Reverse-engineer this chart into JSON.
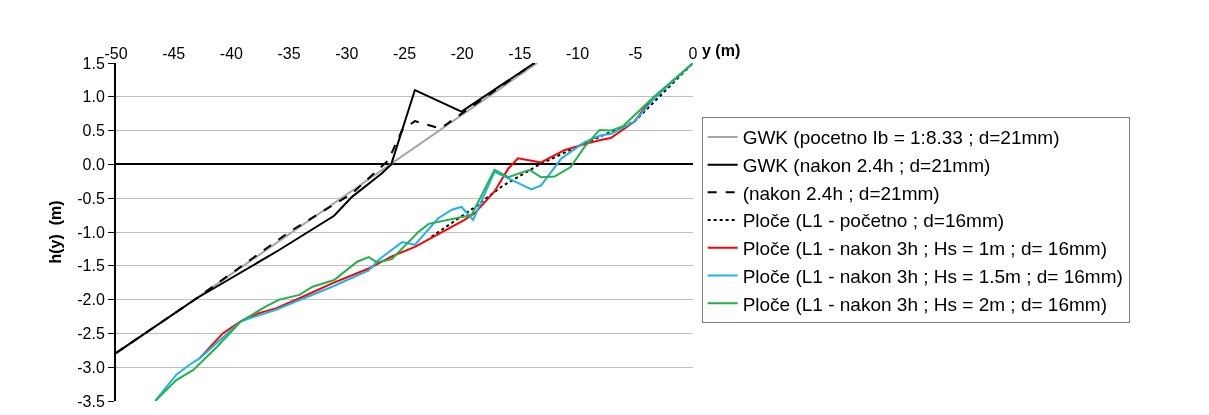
{
  "chart_data": {
    "type": "line",
    "xlabel": "y (m)",
    "ylabel": "h(y)  (m)",
    "xlim": [
      -50,
      0
    ],
    "xticks": [
      -50,
      -45,
      -40,
      -35,
      -30,
      -25,
      -20,
      -15,
      -10,
      -5,
      0
    ],
    "ylim": [
      -3.5,
      1.5
    ],
    "yticks": [
      {
        "value": -3.5,
        "label": "-3.5"
      },
      {
        "value": -3,
        "label": "-3.0"
      },
      {
        "value": -2.5,
        "label": "-2.5"
      },
      {
        "value": -2,
        "label": "-2.0"
      },
      {
        "value": -1.5,
        "label": "-1.5"
      },
      {
        "value": -1,
        "label": "-1.0"
      },
      {
        "value": -0.5,
        "label": "-0.5"
      },
      {
        "value": 0,
        "label": "0.0"
      },
      {
        "value": 0.5,
        "label": "0.5"
      },
      {
        "value": 1,
        "label": "1.0"
      },
      {
        "value": 1.5,
        "label": "1.5"
      }
    ],
    "grid": "y",
    "legend": "right",
    "marker": "none",
    "series": [
      {
        "name": "GWK (pocetno Ib = 1:8.33 ; d=21mm)",
        "color": "#a6a6a6",
        "line_style": "solid",
        "x": [
          -50,
          -13.5
        ],
        "values": [
          -2.8,
          1.5
        ]
      },
      {
        "name": "GWK (nakon 2.4h ; d=21mm)",
        "color": "#000000",
        "line_style": "solid",
        "x": [
          -50,
          -43,
          -35.9,
          -31.1,
          -29.55,
          -26.95,
          -26.15,
          -24.1,
          -20.06,
          -13.74
        ],
        "values": [
          -2.79,
          -1.98,
          -1.27,
          -0.76,
          -0.48,
          -0.13,
          0,
          1.1,
          0.78,
          1.5
        ]
      },
      {
        "name": "(nakon 2.4h ; d=21mm)",
        "color": "#000000",
        "line_style": "dashed",
        "x": [
          -50,
          -43,
          -35,
          -29.55,
          -26.4,
          -25.2,
          -24.1,
          -21.9,
          -13.74
        ],
        "values": [
          -2.79,
          -1.98,
          -1.0,
          -0.43,
          0.06,
          0.51,
          0.64,
          0.53,
          1.5
        ]
      },
      {
        "name": "Ploče (L1 - početno ; d=16mm)",
        "color": "#000000",
        "line_style": "dotted",
        "x": [
          -22.66,
          -19.05,
          -16.6,
          -13.4,
          -9.7,
          -5.1,
          0
        ],
        "values": [
          -1.07,
          -0.65,
          -0.33,
          -0.01,
          0.29,
          0.63,
          1.5
        ]
      },
      {
        "name": "Ploče (L1 - nakon 3h ; Hs = 1m ; d= 16mm)",
        "color": "#ff0000",
        "line_style": "solid",
        "x": [
          -42.76,
          -40.75,
          -39.17,
          -37.6,
          -36.15,
          -34.1,
          -31.27,
          -28.1,
          -26.1,
          -24.1,
          -19.8,
          -18.9,
          -17.2,
          -16.0,
          -15.17,
          -13.16,
          -11.15,
          -9.4,
          -8.0,
          -7.13,
          -5.1,
          -3.67
        ],
        "values": [
          -2.87,
          -2.5,
          -2.32,
          -2.2,
          -2.13,
          -1.98,
          -1.76,
          -1.54,
          -1.36,
          -1.22,
          -0.82,
          -0.72,
          -0.4,
          -0.06,
          0.09,
          0.03,
          0.21,
          0.3,
          0.36,
          0.39,
          0.63,
          0.95
        ]
      },
      {
        "name": "Ploče (L1 - nakon 3h ; Hs = 1.5m ; d= 16mm)",
        "color": "#1fb4e8",
        "line_style": "solid",
        "x": [
          -46.6,
          -44.77,
          -43.6,
          -42.76,
          -39.17,
          -36.15,
          -31.27,
          -28.1,
          -27.24,
          -25.2,
          -24.1,
          -22.1,
          -20.9,
          -20.06,
          -19.05,
          -17.2,
          -14.0,
          -13.16,
          -11.4,
          -9.4,
          -8.0,
          -7.13,
          -5.1,
          -3.38,
          0
        ],
        "values": [
          -3.5,
          -3.11,
          -2.96,
          -2.87,
          -2.32,
          -2.15,
          -1.81,
          -1.57,
          -1.41,
          -1.15,
          -1.19,
          -0.8,
          -0.67,
          -0.63,
          -0.82,
          -0.11,
          -0.37,
          -0.31,
          0.09,
          0.33,
          0.43,
          0.45,
          0.63,
          0.97,
          1.5
        ]
      },
      {
        "name": "Ploče (L1 - nakon 3h ; Hs = 2m ; d= 16mm)",
        "color": "#22b14c",
        "line_style": "solid",
        "x": [
          -46.6,
          -44.77,
          -43.3,
          -41.2,
          -39.17,
          -37.0,
          -35.86,
          -34.1,
          -32.97,
          -31.1,
          -29.1,
          -28.1,
          -27.4,
          -26.1,
          -23.8,
          -22.9,
          -19.2,
          -17.2,
          -16.0,
          -14.17,
          -13.16,
          -12.0,
          -10.6,
          -9.4,
          -8.1,
          -7.13,
          -6.1,
          -3.38,
          0
        ],
        "values": [
          -3.5,
          -3.19,
          -3.04,
          -2.69,
          -2.32,
          -2.1,
          -2.0,
          -1.93,
          -1.81,
          -1.71,
          -1.44,
          -1.37,
          -1.45,
          -1.4,
          -1.0,
          -0.88,
          -0.75,
          -0.08,
          -0.19,
          -0.08,
          -0.19,
          -0.18,
          -0.04,
          0.26,
          0.51,
          0.5,
          0.56,
          1.0,
          1.5
        ]
      }
    ]
  }
}
